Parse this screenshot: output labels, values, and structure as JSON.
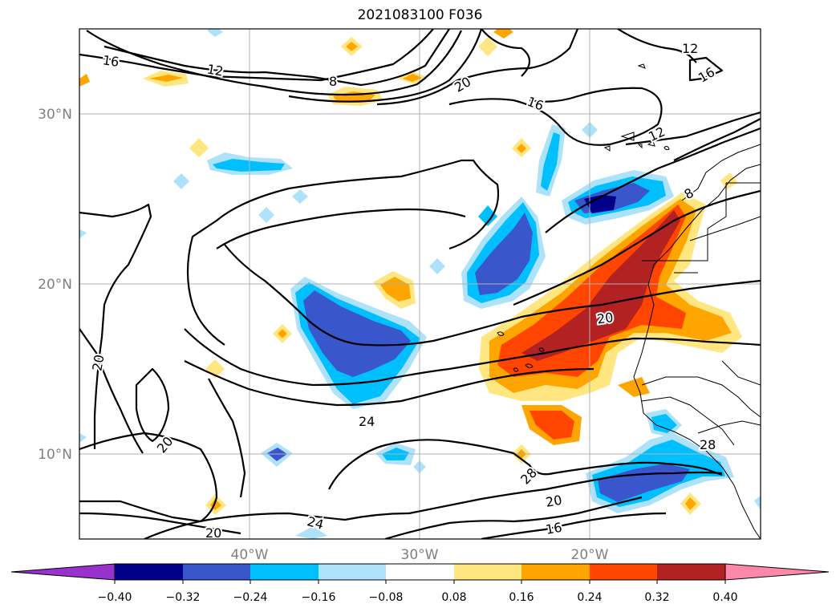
{
  "title": "2021083100 F036",
  "map": {
    "grid_on": true,
    "lat_labels": [
      "30°N",
      "20°N",
      "10°N"
    ],
    "lon_labels": [
      "40°W",
      "30°W",
      "20°W"
    ],
    "contour_labels": [
      "16",
      "12",
      "8",
      "20",
      "16",
      "12",
      "16",
      "12",
      "8",
      "20",
      "20",
      "20",
      "24",
      "28",
      "28",
      "20",
      "16",
      "24",
      "20"
    ]
  },
  "colorbar": {
    "ticks": [
      "−0.40",
      "−0.32",
      "−0.24",
      "−0.16",
      "−0.08",
      "0.08",
      "0.16",
      "0.24",
      "0.32",
      "0.40"
    ],
    "colors": [
      "#9932cc",
      "#00008b",
      "#3a56cc",
      "#00bfff",
      "#aee1fa",
      "#ffffff",
      "#ffe680",
      "#ffa500",
      "#ff4500",
      "#b22222",
      "#ff88aa"
    ]
  }
}
